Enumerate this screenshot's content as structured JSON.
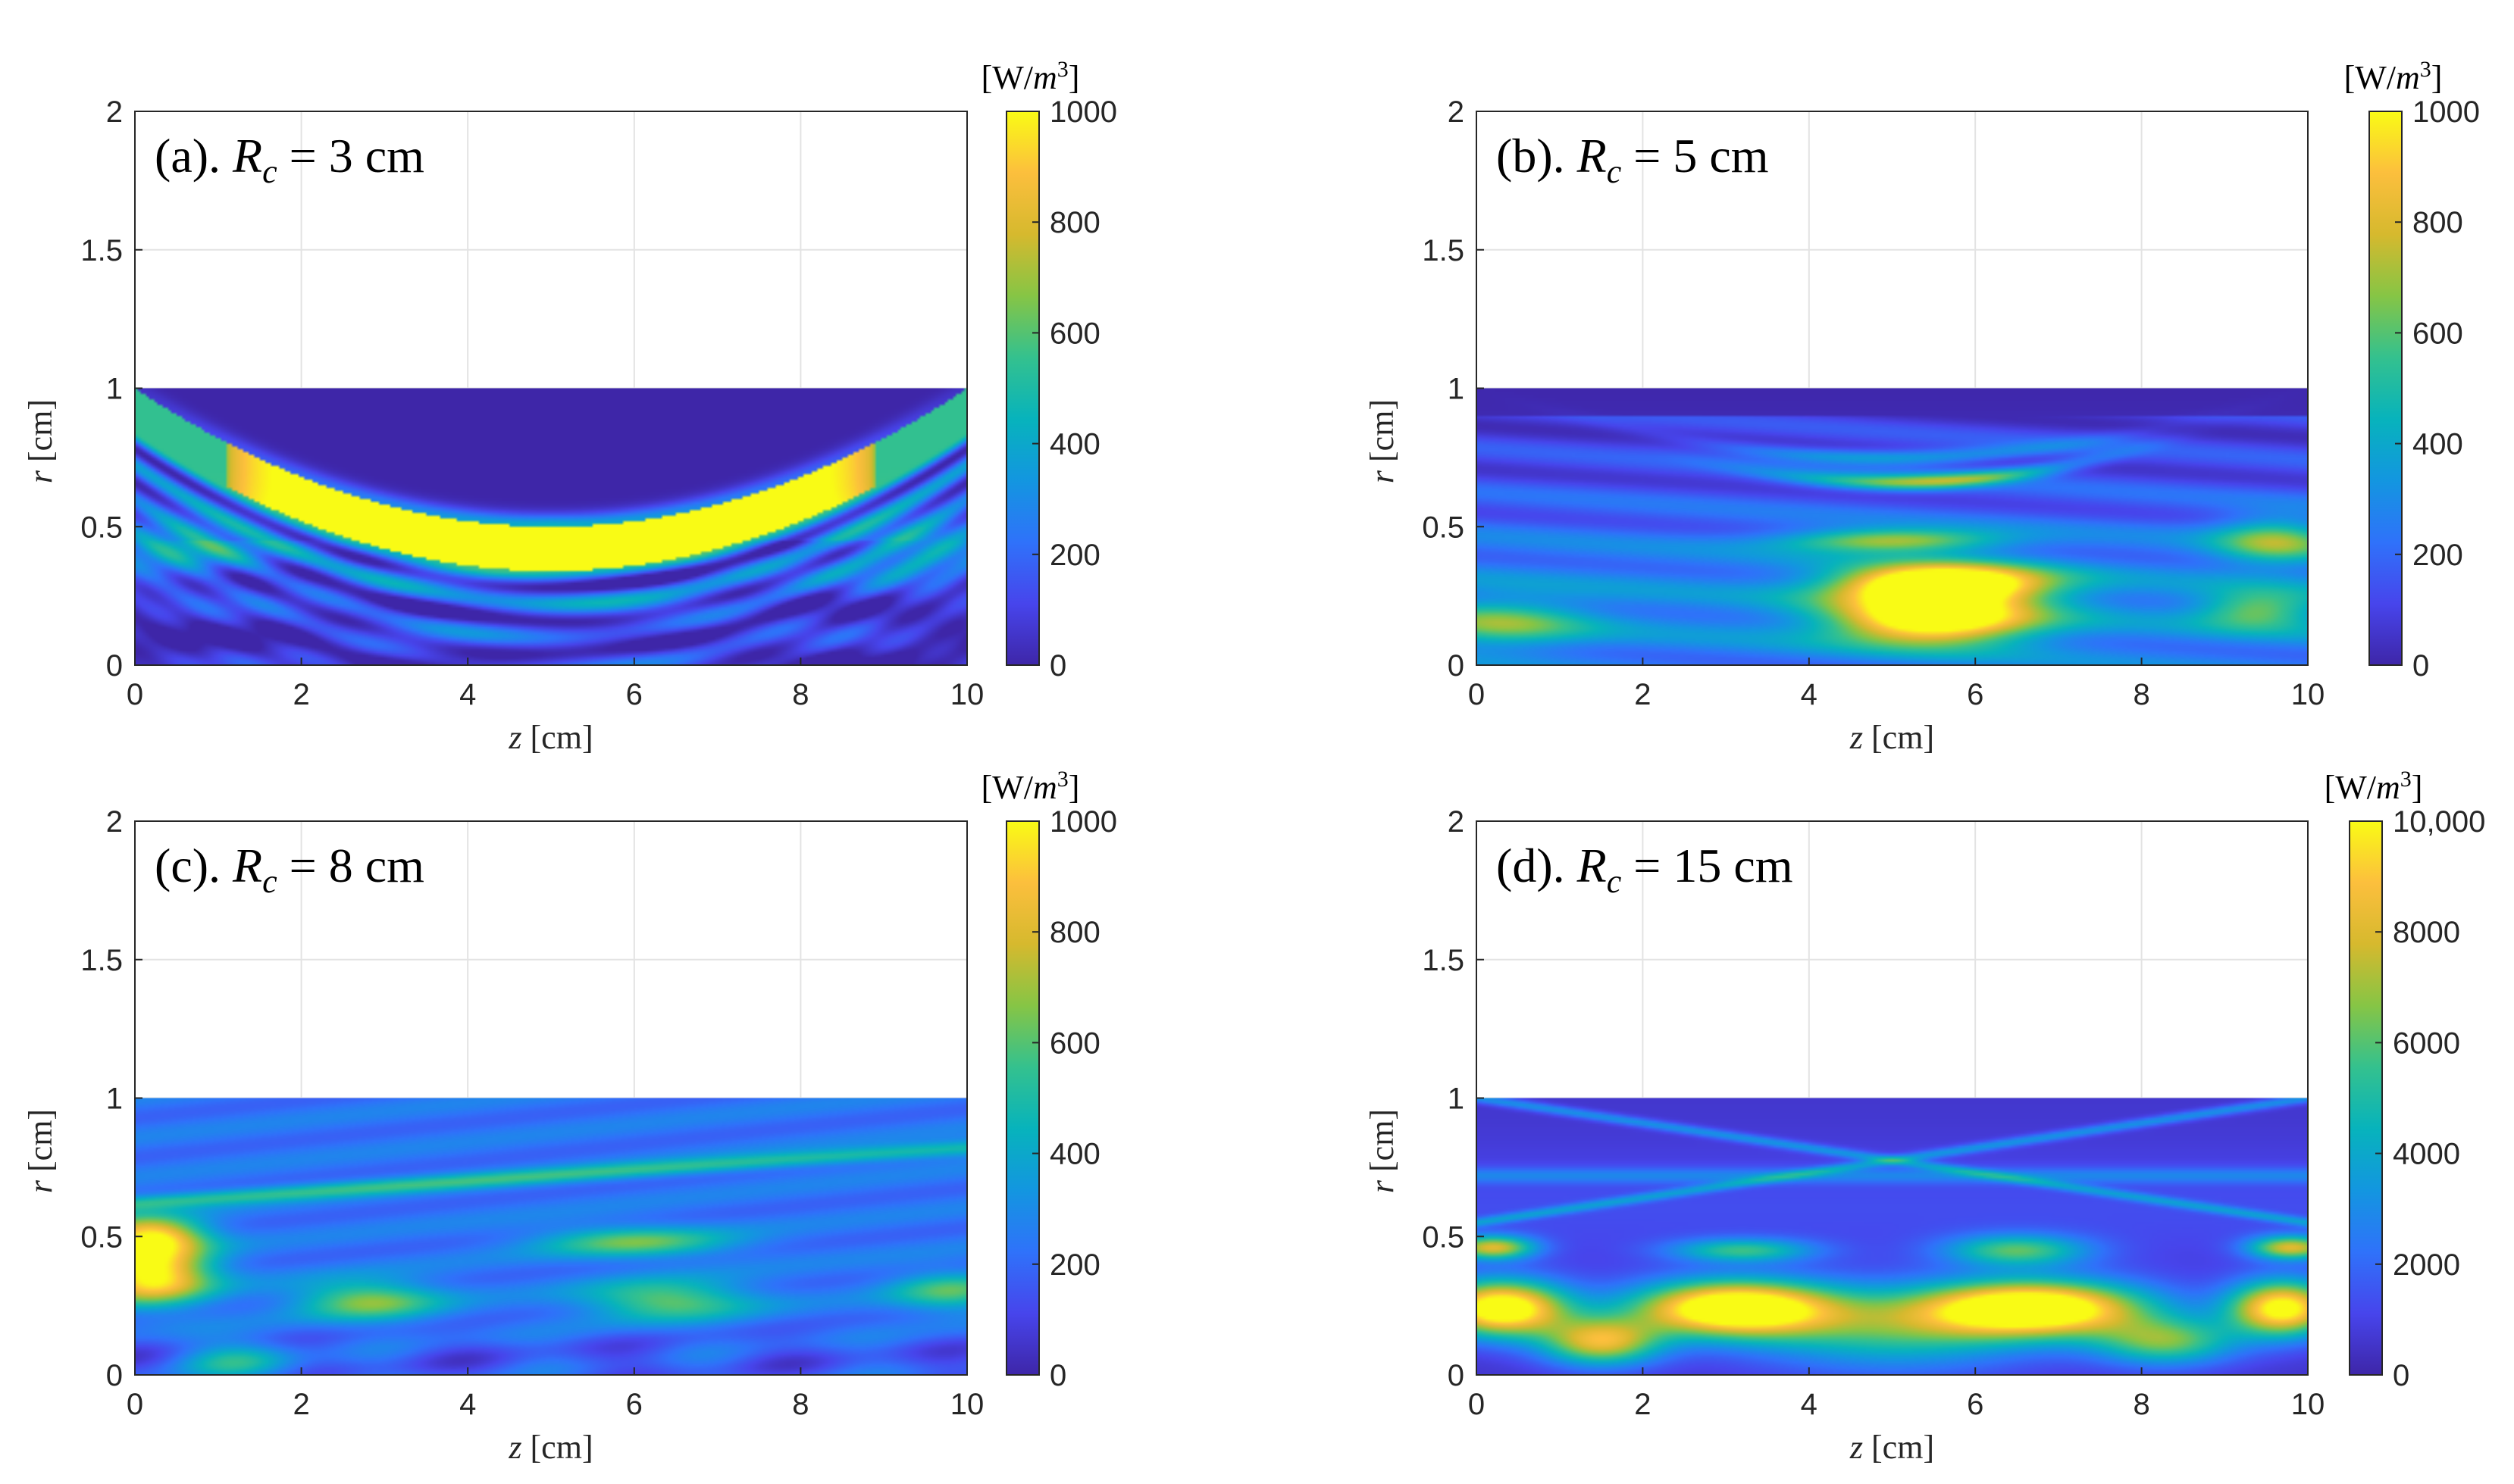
{
  "figure": {
    "colormap": "parula",
    "colors": {
      "parula": [
        "#3e26a8",
        "#4745ec",
        "#2f72fa",
        "#1396e0",
        "#07b3bc",
        "#34c18e",
        "#86c545",
        "#d6b92e",
        "#fcbf3d",
        "#f9fb15"
      ],
      "text": "#262626",
      "grid": "#e3e3e3"
    }
  },
  "chart_data": [
    {
      "type": "heatmap",
      "panel_label": "(a). ",
      "title_var": "R",
      "title_sub": "c",
      "title_eq": " = 3 cm",
      "field": "ellipse",
      "rc_cm": 3,
      "xlabel_var": "z",
      "xlabel_unit": " [cm]",
      "ylabel_var": "r",
      "ylabel_unit": " [cm]",
      "xlim": [
        0,
        10
      ],
      "ylim": [
        0,
        2
      ],
      "xticks": [
        "0",
        "2",
        "4",
        "6",
        "8",
        "10"
      ],
      "yticks": [
        "0",
        "0.5",
        "1",
        "1.5",
        "2"
      ],
      "colorbar": {
        "unit_prefix": "[W/",
        "unit_var": "m",
        "unit_sup": "3",
        "unit_suffix": "]",
        "range": [
          0,
          1000
        ],
        "ticks": [
          "0",
          "200",
          "400",
          "600",
          "800",
          "1000"
        ]
      }
    },
    {
      "type": "heatmap",
      "panel_label": "(b). ",
      "title_var": "R",
      "title_sub": "c",
      "title_eq": " = 5 cm",
      "field": "focus",
      "rc_cm": 5,
      "xlabel_var": "z",
      "xlabel_unit": " [cm]",
      "ylabel_var": "r",
      "ylabel_unit": " [cm]",
      "xlim": [
        0,
        10
      ],
      "ylim": [
        0,
        2
      ],
      "xticks": [
        "0",
        "2",
        "4",
        "6",
        "8",
        "10"
      ],
      "yticks": [
        "0",
        "0.5",
        "1",
        "1.5",
        "2"
      ],
      "colorbar": {
        "unit_prefix": "[W/",
        "unit_var": "m",
        "unit_sup": "3",
        "unit_suffix": "]",
        "range": [
          0,
          1000
        ],
        "ticks": [
          "0",
          "200",
          "400",
          "600",
          "800",
          "1000"
        ]
      }
    },
    {
      "type": "heatmap",
      "panel_label": "(c). ",
      "title_var": "R",
      "title_sub": "c",
      "title_eq": " = 8 cm",
      "field": "diffuse",
      "rc_cm": 8,
      "xlabel_var": "z",
      "xlabel_unit": " [cm]",
      "ylabel_var": "r",
      "ylabel_unit": " [cm]",
      "xlim": [
        0,
        10
      ],
      "ylim": [
        0,
        2
      ],
      "xticks": [
        "0",
        "2",
        "4",
        "6",
        "8",
        "10"
      ],
      "yticks": [
        "0",
        "0.5",
        "1",
        "1.5",
        "2"
      ],
      "colorbar": {
        "unit_prefix": "[W/",
        "unit_var": "m",
        "unit_sup": "3",
        "unit_suffix": "]",
        "range": [
          0,
          1000
        ],
        "ticks": [
          "0",
          "200",
          "400",
          "600",
          "800",
          "1000"
        ]
      }
    },
    {
      "type": "heatmap",
      "panel_label": "(d). ",
      "title_var": "R",
      "title_sub": "c",
      "title_eq": " = 15 cm",
      "field": "lobes",
      "rc_cm": 15,
      "xlabel_var": "z",
      "xlabel_unit": " [cm]",
      "ylabel_var": "r",
      "ylabel_unit": " [cm]",
      "xlim": [
        0,
        10
      ],
      "ylim": [
        0,
        2
      ],
      "xticks": [
        "0",
        "2",
        "4",
        "6",
        "8",
        "10"
      ],
      "yticks": [
        "0",
        "0.5",
        "1",
        "1.5",
        "2"
      ],
      "colorbar": {
        "unit_prefix": "[W/",
        "unit_var": "m",
        "unit_sup": "3",
        "unit_suffix": "]",
        "range": [
          0,
          10000
        ],
        "ticks": [
          "0",
          "2000",
          "4000",
          "6000",
          "8000",
          "10,000"
        ]
      }
    }
  ]
}
